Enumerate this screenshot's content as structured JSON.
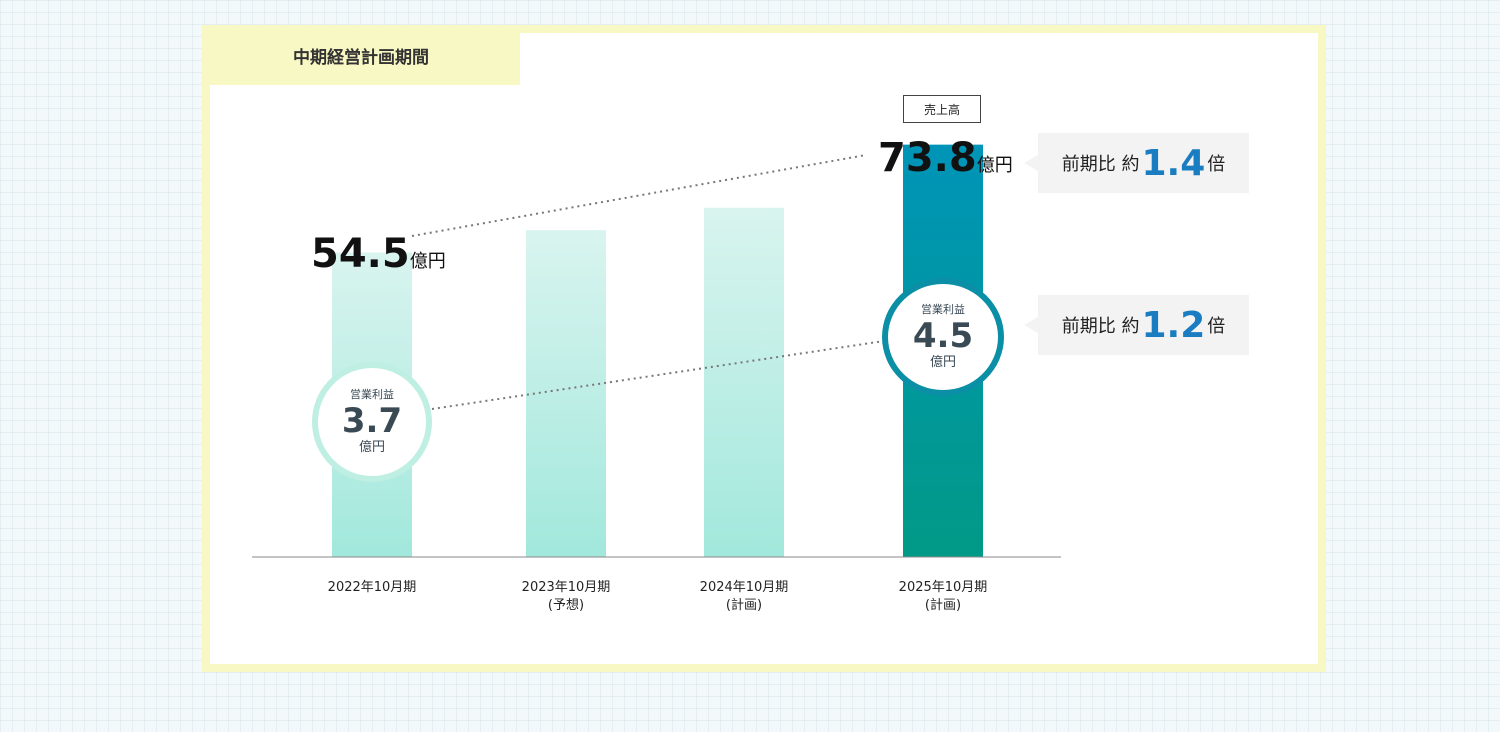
{
  "tab_label": "中期経営計画期間",
  "badge_label": "売上高",
  "chart_data": {
    "type": "bar",
    "categories": [
      [
        "2022年10月期",
        ""
      ],
      [
        "2023年10月期",
        "(予想)"
      ],
      [
        "2024年10月期",
        "(計画)"
      ],
      [
        "2025年10月期",
        "(計画)"
      ]
    ],
    "series": [
      {
        "name": "売上高",
        "values": [
          54.5,
          58.5,
          62.5,
          73.8
        ],
        "unit": "億円"
      }
    ],
    "operating_profit": {
      "label": "営業利益",
      "first": "3.7",
      "last": "4.5",
      "unit": "億円"
    },
    "ylim": [
      0,
      80
    ],
    "sales_labels": [
      {
        "value": "54.5",
        "unit": "億円"
      },
      {
        "value": "73.8",
        "unit": "億円"
      }
    ],
    "colors": {
      "light_top": "#d9f4ef",
      "light_bottom": "#a2e8dc",
      "dark_top": "#0094b8",
      "dark_bottom": "#019a87",
      "ring_light": "#bfeee3",
      "ring_dark": "#0b8fa6"
    }
  },
  "callouts": [
    {
      "prefix": "前期比 約",
      "mult": "1.4",
      "suffix": "倍"
    },
    {
      "prefix": "前期比 約",
      "mult": "1.2",
      "suffix": "倍"
    }
  ]
}
